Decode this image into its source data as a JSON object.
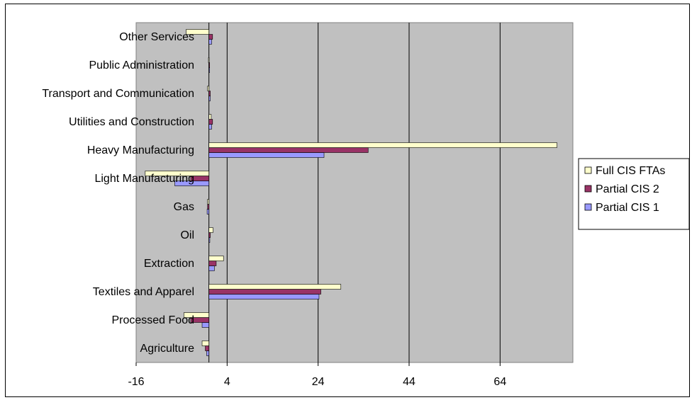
{
  "chart_data": {
    "type": "bar",
    "orientation": "horizontal",
    "categories": [
      "Agriculture",
      "Processed Food",
      "Textiles and Apparel",
      "Extraction",
      "Oil",
      "Gas",
      "Light Manufacturing",
      "Heavy Manufacturing",
      "Utilities and Construction",
      "Transport and Communication",
      "Public Administration",
      "Other Services"
    ],
    "series": [
      {
        "name": "Partial CIS 1",
        "color": "#9999ff",
        "values": [
          -0.5,
          -1.5,
          24.2,
          1.2,
          0.2,
          -0.4,
          -7.5,
          25.3,
          0.6,
          0.3,
          0.1,
          0.6
        ]
      },
      {
        "name": "Partial CIS 2",
        "color": "#993366",
        "values": [
          -0.8,
          -4.0,
          24.6,
          1.6,
          0.3,
          -0.3,
          -4.0,
          35.0,
          0.8,
          0.3,
          0.1,
          0.8
        ]
      },
      {
        "name": "Full CIS FTAs",
        "color": "#ffffcc",
        "values": [
          -1.5,
          -5.5,
          29.0,
          3.2,
          0.9,
          -0.3,
          -14.0,
          76.5,
          0.5,
          -0.3,
          -0.1,
          -5.0
        ]
      }
    ],
    "xticks": [
      "-16",
      "4",
      "24",
      "44",
      "64"
    ],
    "xlim": [
      -16,
      80
    ],
    "grid": true,
    "legend_position": "right",
    "title": "",
    "xlabel": "",
    "ylabel": ""
  }
}
